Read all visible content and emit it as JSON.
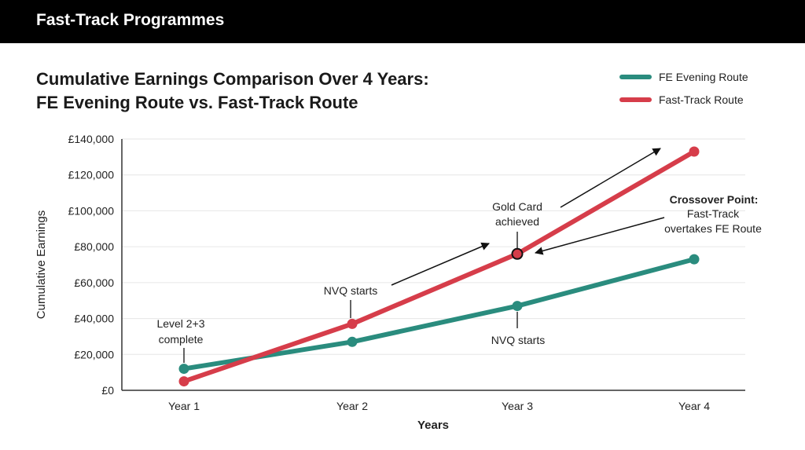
{
  "header": {
    "title": "Fast-Track Programmes"
  },
  "chart_data": {
    "type": "line",
    "title": [
      "Cumulative Earnings Comparison Over 4 Years:",
      "FE Evening Route vs. Fast-Track Route"
    ],
    "xlabel": "Years",
    "ylabel": "Cumulative Earnings",
    "categories": [
      "Year 1",
      "Year 2",
      "Year 3",
      "Year 4"
    ],
    "ylim": [
      0,
      140000
    ],
    "yticks": [
      0,
      20000,
      40000,
      60000,
      80000,
      100000,
      120000,
      140000
    ],
    "ytick_labels": [
      "£0",
      "£20,000",
      "£40,000",
      "£60,000",
      "£80,000",
      "£100,000",
      "£120,000",
      "£140,000"
    ],
    "grid": true,
    "legend": "top-right",
    "series": [
      {
        "name": "FE Evening Route",
        "color": "#2a8c7e",
        "values": [
          12000,
          27000,
          47000,
          73000
        ]
      },
      {
        "name": "Fast-Track Route",
        "color": "#d63d4a",
        "values": [
          5000,
          37000,
          76000,
          133000
        ]
      }
    ],
    "annotations": {
      "level": [
        "Level 2+3",
        "complete"
      ],
      "nvq_fast": "NVQ starts",
      "nvq_fe": "NVQ starts",
      "gold": [
        "Gold Card",
        "achieved"
      ],
      "crossover_title": "Crossover Point:",
      "crossover": [
        "Fast-Track",
        "overtakes FE Route"
      ]
    }
  }
}
